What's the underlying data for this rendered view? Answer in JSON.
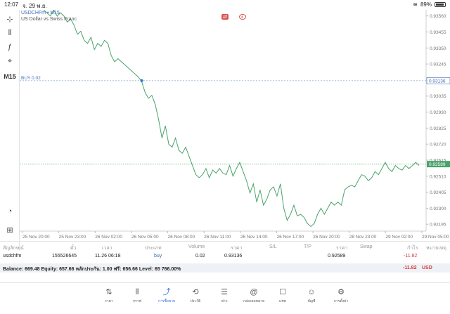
{
  "status_bar": {
    "time": "12:07",
    "date": "จ. 29 พ.ย.",
    "battery": "89%"
  },
  "toolbar": {
    "items": [
      {
        "name": "crosshair-icon",
        "glyph": "⊹"
      },
      {
        "name": "candles-icon",
        "glyph": "⫴"
      },
      {
        "name": "indicator-icon",
        "glyph": "ƒ"
      },
      {
        "name": "objects-icon",
        "glyph": "⌖"
      }
    ],
    "timeframe": "M15",
    "bottom_items": [
      {
        "name": "gauge-icon",
        "glyph": "◔"
      },
      {
        "name": "add-window-icon",
        "glyph": "⊞"
      }
    ]
  },
  "chart": {
    "symbol": "USDCHFm • M15",
    "description": "US Dollar vs Swiss Franc",
    "buy_label": "BUY 0.02",
    "buy_price": "0.93136",
    "current_price": "0.92589",
    "line_color": "#4aa36b",
    "price_line_color": "#4aa36b"
  },
  "chart_data": {
    "type": "line",
    "ylim": [
      0.9215,
      0.936
    ],
    "y_ticks": [
      0.9356,
      0.93455,
      0.9335,
      0.93245,
      0.9314,
      0.93035,
      0.9293,
      0.92825,
      0.9272,
      0.92615,
      0.9251,
      0.92405,
      0.923,
      0.92195
    ],
    "x_ticks": [
      "25 Nov 20:00",
      "25 Nov 23:00",
      "26 Nov 02:00",
      "26 Nov 05:00",
      "26 Nov 08:00",
      "26 Nov 11:00",
      "26 Nov 14:00",
      "26 Nov 17:00",
      "26 Nov 20:00",
      "28 Nov 23:00",
      "29 Nov 02:00",
      "29 Nov 05:00"
    ],
    "series": [
      {
        "values": [
          0.936,
          0.9358,
          0.9356,
          0.936,
          0.9356,
          0.9358,
          0.9356,
          0.9352,
          0.9354,
          0.935,
          0.9344,
          0.9346,
          0.934,
          0.9338,
          0.9342,
          0.9334,
          0.9338,
          0.9336,
          0.934,
          0.9338,
          0.933,
          0.9326,
          0.9328,
          0.9326,
          0.9324,
          0.9322,
          0.932,
          0.9318,
          0.9316,
          0.9313,
          0.9306,
          0.9302,
          0.9304,
          0.9298,
          0.9288,
          0.9276,
          0.9284,
          0.9272,
          0.927,
          0.9276,
          0.9268,
          0.9266,
          0.927,
          0.9264,
          0.9258,
          0.9252,
          0.925,
          0.9252,
          0.9256,
          0.925,
          0.9255,
          0.9253,
          0.9256,
          0.9253,
          0.9252,
          0.9258,
          0.9251,
          0.9256,
          0.926,
          0.9254,
          0.9248,
          0.924,
          0.9246,
          0.9234,
          0.9242,
          0.9232,
          0.9236,
          0.9242,
          0.9244,
          0.9238,
          0.9246,
          0.923,
          0.9222,
          0.9226,
          0.9232,
          0.9225,
          0.9226,
          0.9224,
          0.922,
          0.9218,
          0.922,
          0.9226,
          0.923,
          0.9226,
          0.923,
          0.9234,
          0.9232,
          0.9234,
          0.9232,
          0.9242,
          0.9244,
          0.9245,
          0.9244,
          0.9248,
          0.9252,
          0.9251,
          0.9248,
          0.925,
          0.9254,
          0.9252,
          0.9256,
          0.926,
          0.9256,
          0.9254,
          0.9258,
          0.9256,
          0.9255,
          0.9258,
          0.9256,
          0.9258,
          0.926,
          0.9258
        ]
      }
    ],
    "buy_level": 0.93136,
    "current_level": 0.92589,
    "grid": false
  },
  "table": {
    "headers": [
      "สัญลักษณ์",
      "ตั๋ว",
      "เวลา",
      "ประเภท",
      "Volume",
      "ราคา",
      "S/L",
      "T/P",
      "ราคา",
      "Swap",
      "กำไร",
      "หมายเหตุ"
    ],
    "row": {
      "symbol": "usdchfm",
      "ticket": "155526645",
      "time": "11.26 06:18",
      "type": "buy",
      "volume": "0.02",
      "open_price": "0.93136",
      "sl": "",
      "tp": "",
      "price": "0.92589",
      "swap": "",
      "profit": "-11.82",
      "note": ""
    }
  },
  "balance": {
    "text": "Balance: 669.48 Equity: 657.66 หลักประกัน: 1.00 ฟรี: 656.66 Level: 65 766.00%",
    "total": "-11.82",
    "currency": "USD"
  },
  "nav": {
    "items": [
      {
        "label": "ราคา",
        "icon": "⇅",
        "name": "nav-quotes"
      },
      {
        "label": "กราฟ",
        "icon": "⫴",
        "name": "nav-chart"
      },
      {
        "label": "การซื้อขาย",
        "icon": "⤴",
        "name": "nav-trade"
      },
      {
        "label": "ประวัติ",
        "icon": "⟲",
        "name": "nav-history"
      },
      {
        "label": "ข่าว",
        "icon": "☰",
        "name": "nav-news"
      },
      {
        "label": "กล่องจดหมาย",
        "icon": "@",
        "name": "nav-mailbox"
      },
      {
        "label": "แชท",
        "icon": "☐",
        "name": "nav-chat"
      },
      {
        "label": "บัญชี",
        "icon": "☺",
        "name": "nav-account"
      },
      {
        "label": "การตั้งค่า",
        "icon": "⚙",
        "name": "nav-settings"
      }
    ],
    "active_index": 2
  }
}
